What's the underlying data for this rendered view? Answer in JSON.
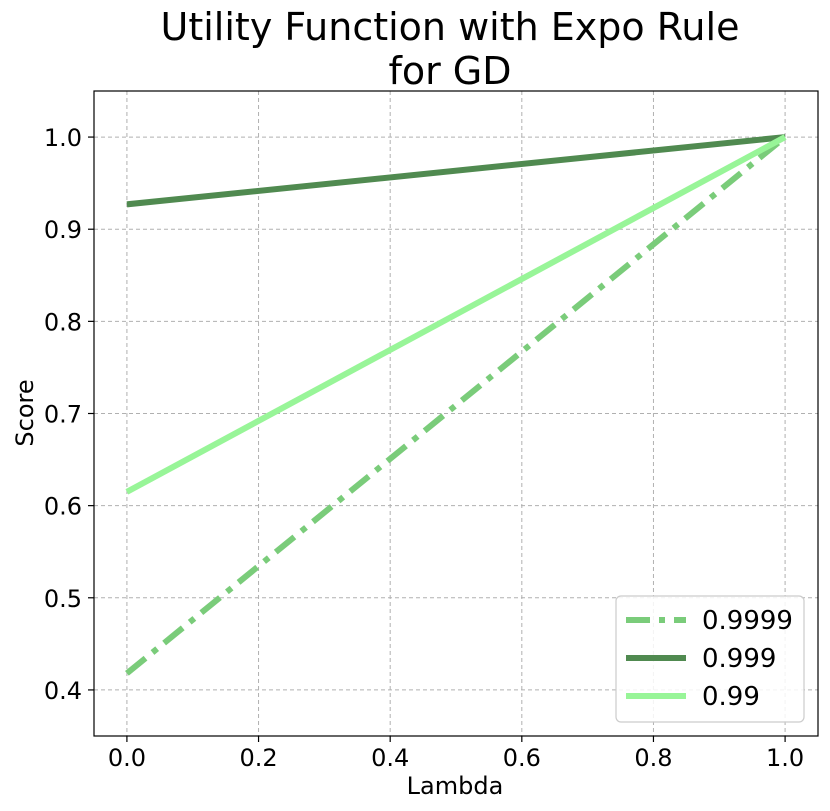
{
  "chart_data": {
    "type": "line",
    "title": [
      "Utility Function with Expo Rule",
      "for GD"
    ],
    "xlabel": "Lambda",
    "ylabel": "Score",
    "xlim": [
      -0.05,
      1.05
    ],
    "ylim": [
      0.35,
      1.05
    ],
    "xticks": [
      "0.0",
      "0.2",
      "0.4",
      "0.6",
      "0.8",
      "1.0"
    ],
    "yticks": [
      "0.4",
      "0.5",
      "0.6",
      "0.7",
      "0.8",
      "0.9",
      "1.0"
    ],
    "grid": true,
    "legend_position": "lower-right",
    "series": [
      {
        "name": "0.9999",
        "x": [
          0.0,
          1.0
        ],
        "y": [
          0.418,
          1.0
        ],
        "color": "#7acc7a",
        "style": "dashdot"
      },
      {
        "name": "0.999",
        "x": [
          0.0,
          1.0
        ],
        "y": [
          0.927,
          1.0
        ],
        "color": "#508a50",
        "style": "solid"
      },
      {
        "name": "0.99",
        "x": [
          0.0,
          1.0
        ],
        "y": [
          0.615,
          1.0
        ],
        "color": "#98f598",
        "style": "solid"
      }
    ]
  }
}
